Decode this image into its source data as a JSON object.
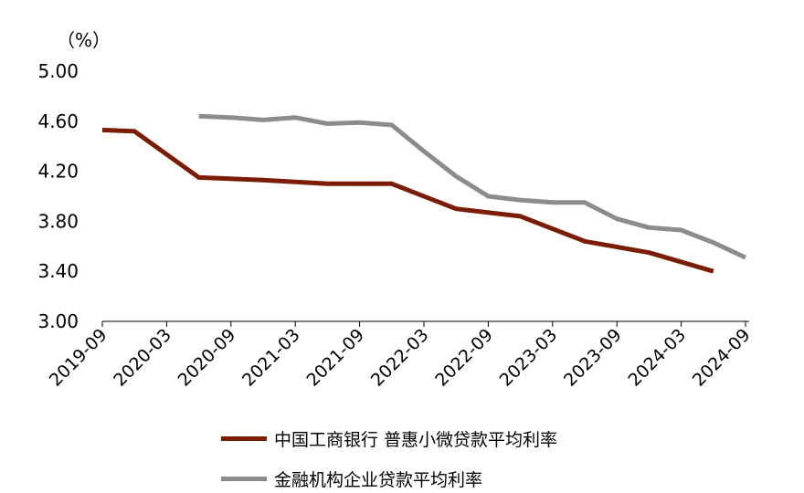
{
  "chart_data": {
    "type": "line",
    "title": "",
    "unit_label": "（%）",
    "ylim": [
      3.0,
      5.0
    ],
    "yticks": [
      "3.00",
      "3.40",
      "3.80",
      "4.20",
      "4.60",
      "5.00"
    ],
    "xticks": [
      "2019-09",
      "2020-03",
      "2020-09",
      "2021-03",
      "2021-09",
      "2022-03",
      "2022-09",
      "2023-03",
      "2023-09",
      "2024-03",
      "2024-09"
    ],
    "series": [
      {
        "name": "中国工商银行 普惠小微贷款平均利率",
        "color": "#7B1C05",
        "points": [
          [
            "2019-09",
            4.53
          ],
          [
            "2019-12",
            4.52
          ],
          [
            "2020-06",
            4.15
          ],
          [
            "2020-12",
            4.13
          ],
          [
            "2021-06",
            4.1
          ],
          [
            "2021-12",
            4.1
          ],
          [
            "2022-06",
            3.9
          ],
          [
            "2022-12",
            3.84
          ],
          [
            "2023-06",
            3.64
          ],
          [
            "2023-12",
            3.55
          ],
          [
            "2024-06",
            3.4
          ]
        ]
      },
      {
        "name": "金融机构企业贷款平均利率",
        "color": "#8C8C8C",
        "points": [
          [
            "2020-06",
            4.64
          ],
          [
            "2020-09",
            4.63
          ],
          [
            "2020-12",
            4.61
          ],
          [
            "2021-03",
            4.63
          ],
          [
            "2021-06",
            4.58
          ],
          [
            "2021-09",
            4.59
          ],
          [
            "2021-12",
            4.57
          ],
          [
            "2022-03",
            4.36
          ],
          [
            "2022-06",
            4.16
          ],
          [
            "2022-09",
            4.0
          ],
          [
            "2022-12",
            3.97
          ],
          [
            "2023-03",
            3.95
          ],
          [
            "2023-06",
            3.95
          ],
          [
            "2023-09",
            3.82
          ],
          [
            "2023-12",
            3.75
          ],
          [
            "2024-03",
            3.73
          ],
          [
            "2024-06",
            3.63
          ],
          [
            "2024-09",
            3.51
          ]
        ]
      }
    ],
    "grid": false,
    "legend_position": "bottom"
  }
}
